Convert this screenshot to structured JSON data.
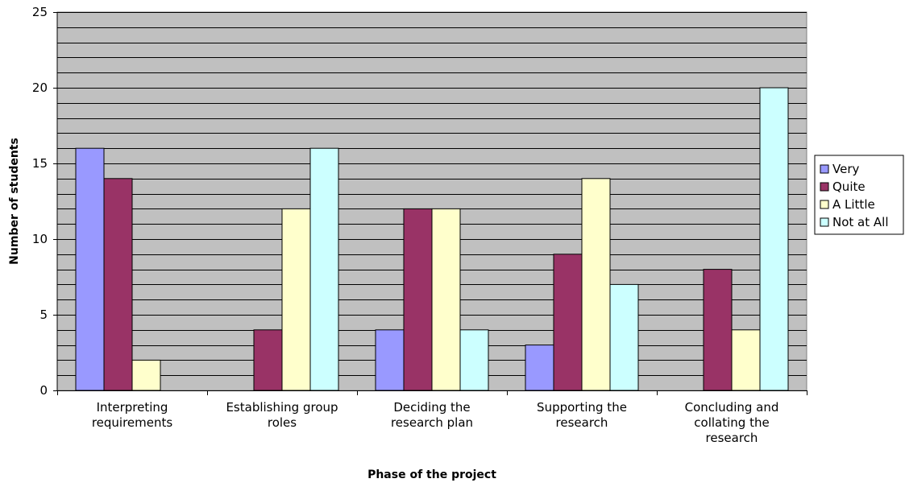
{
  "chart_data": {
    "type": "bar",
    "title": "",
    "xlabel": "Phase of the project",
    "ylabel": "Number of students",
    "ylim": [
      0,
      25
    ],
    "yticks": [
      0,
      5,
      10,
      15,
      20,
      25
    ],
    "minor_gridlines_step": 1,
    "grid": true,
    "legend_position": "right",
    "plot_background": "#c0c0c0",
    "categories": [
      [
        "Interpreting",
        "requirements"
      ],
      [
        "Establishing group",
        "roles"
      ],
      [
        "Deciding the",
        "research plan"
      ],
      [
        "Supporting the",
        "research"
      ],
      [
        "Concluding and",
        "collating the",
        "research"
      ]
    ],
    "series": [
      {
        "name": "Very",
        "color": "#9999ff",
        "values": [
          16,
          0,
          4,
          3,
          0
        ]
      },
      {
        "name": "Quite",
        "color": "#993366",
        "values": [
          14,
          4,
          12,
          9,
          8
        ]
      },
      {
        "name": "A Little",
        "color": "#ffffcc",
        "values": [
          2,
          12,
          12,
          14,
          4
        ]
      },
      {
        "name": "Not at All",
        "color": "#ccffff",
        "values": [
          0,
          16,
          4,
          7,
          20
        ]
      }
    ]
  }
}
